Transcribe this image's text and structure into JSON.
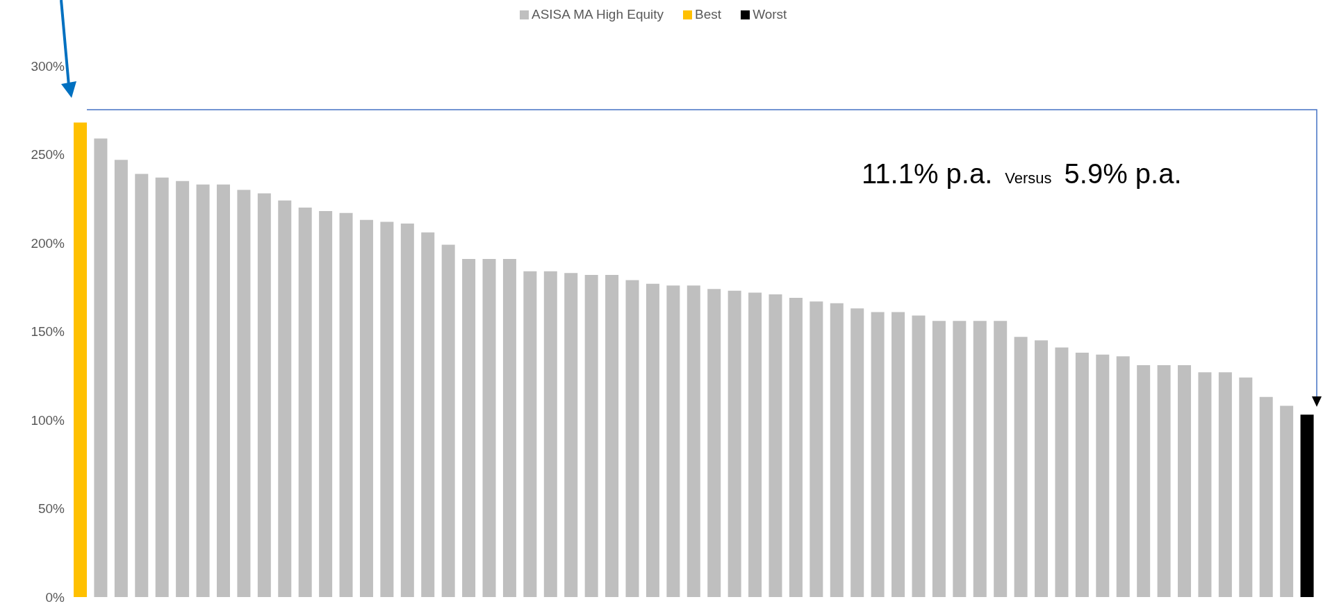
{
  "chart_data": {
    "type": "bar",
    "stacked": true,
    "categories": [
      null,
      null,
      null,
      null,
      null,
      null,
      null,
      null,
      null,
      null,
      null,
      null,
      null,
      null,
      null,
      null,
      null,
      null,
      null,
      null,
      null,
      null,
      null,
      null,
      null,
      null,
      null,
      null,
      null,
      null,
      null,
      null,
      null,
      null,
      null,
      null,
      null,
      null,
      null,
      null,
      null,
      null,
      null,
      null,
      null,
      null,
      null,
      null,
      null,
      null,
      null,
      null,
      null,
      null,
      null,
      null,
      null,
      null,
      null,
      null,
      null
    ],
    "series": [
      {
        "name": "ASISA MA High Equity",
        "color": "#bfbfbf",
        "values": [
          null,
          259,
          247,
          239,
          237,
          235,
          233,
          233,
          230,
          228,
          224,
          220,
          218,
          217,
          213,
          212,
          211,
          206,
          199,
          191,
          191,
          191,
          184,
          184,
          183,
          182,
          182,
          179,
          177,
          176,
          176,
          174,
          173,
          172,
          171,
          169,
          167,
          166,
          163,
          161,
          161,
          159,
          156,
          156,
          156,
          156,
          147,
          145,
          141,
          138,
          137,
          136,
          131,
          131,
          131,
          127,
          127,
          124,
          113,
          108,
          null
        ]
      },
      {
        "name": "Best",
        "color": "#ffc000",
        "values": [
          268,
          null,
          null,
          null,
          null,
          null,
          null,
          null,
          null,
          null,
          null,
          null,
          null,
          null,
          null,
          null,
          null,
          null,
          null,
          null,
          null,
          null,
          null,
          null,
          null,
          null,
          null,
          null,
          null,
          null,
          null,
          null,
          null,
          null,
          null,
          null,
          null,
          null,
          null,
          null,
          null,
          null,
          null,
          null,
          null,
          null,
          null,
          null,
          null,
          null,
          null,
          null,
          null,
          null,
          null,
          null,
          null,
          null,
          null,
          null,
          null
        ]
      },
      {
        "name": "Worst",
        "color": "#000000",
        "values": [
          null,
          null,
          null,
          null,
          null,
          null,
          null,
          null,
          null,
          null,
          null,
          null,
          null,
          null,
          null,
          null,
          null,
          null,
          null,
          null,
          null,
          null,
          null,
          null,
          null,
          null,
          null,
          null,
          null,
          null,
          null,
          null,
          null,
          null,
          null,
          null,
          null,
          null,
          null,
          null,
          null,
          null,
          null,
          null,
          null,
          null,
          null,
          null,
          null,
          null,
          null,
          null,
          null,
          null,
          null,
          null,
          null,
          null,
          null,
          null,
          103
        ]
      }
    ],
    "ylim": [
      0,
      300
    ],
    "yticks": [
      {
        "value": 0,
        "label": "0%"
      },
      {
        "value": 50,
        "label": "50%"
      },
      {
        "value": 100,
        "label": "100%"
      },
      {
        "value": 150,
        "label": "150%"
      },
      {
        "value": 200,
        "label": "200%"
      },
      {
        "value": 250,
        "label": "250%"
      },
      {
        "value": 300,
        "label": "300%"
      }
    ],
    "tick_labels": "y",
    "grid": false,
    "legend": "top",
    "annotations": [
      "11.1% p.a.",
      "Versus",
      "5.9% p.a."
    ]
  }
}
